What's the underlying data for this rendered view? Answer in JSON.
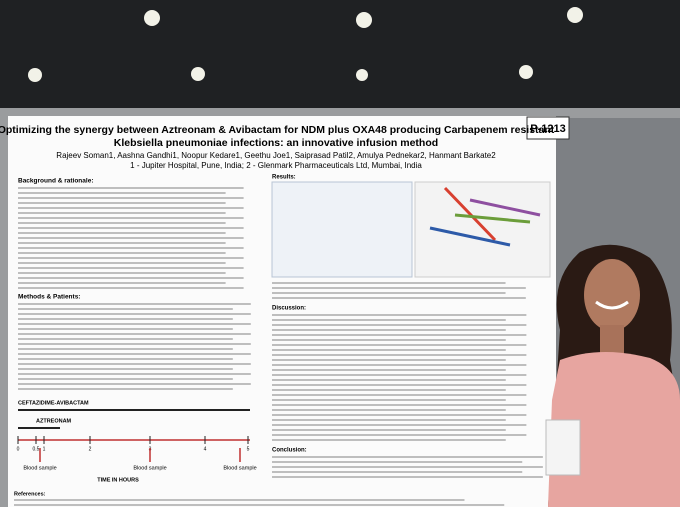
{
  "poster": {
    "id": "P-1213",
    "title_line1": "Optimizing the synergy between Aztreonam & Avibactam for NDM plus OXA48 producing Carbapenem resistant",
    "title_line2": "Klebsiella pneumoniae infections: an innovative infusion method",
    "authors": "Rajeev Soman1, Aashna Gandhi1, Noopur Kedare1, Geethu Joe1, Saiprasad Patil2, Amulya Pednekar2, Hanmant Barkate2",
    "affiliations": "1 - Jupiter Hospital, Pune, India; 2 - Glenmark Pharmaceuticals Ltd, Mumbai, India",
    "sections": {
      "background": "Background & rationale:",
      "methods": "Methods & Patients:",
      "results": "Results:",
      "discussion": "Discussion:",
      "conclusion": "Conclusion:",
      "references": "References:"
    },
    "diagram": {
      "drug1": "CEFTAZIDIME-AVIBACTAM",
      "drug2": "AZTREONAM",
      "ticks": [
        "0",
        "0.5",
        "1",
        "2",
        "3",
        "4",
        "5"
      ],
      "samples": [
        "Blood sample",
        "Blood sample",
        "Blood sample"
      ],
      "axis": "TIME IN HOURS"
    }
  }
}
